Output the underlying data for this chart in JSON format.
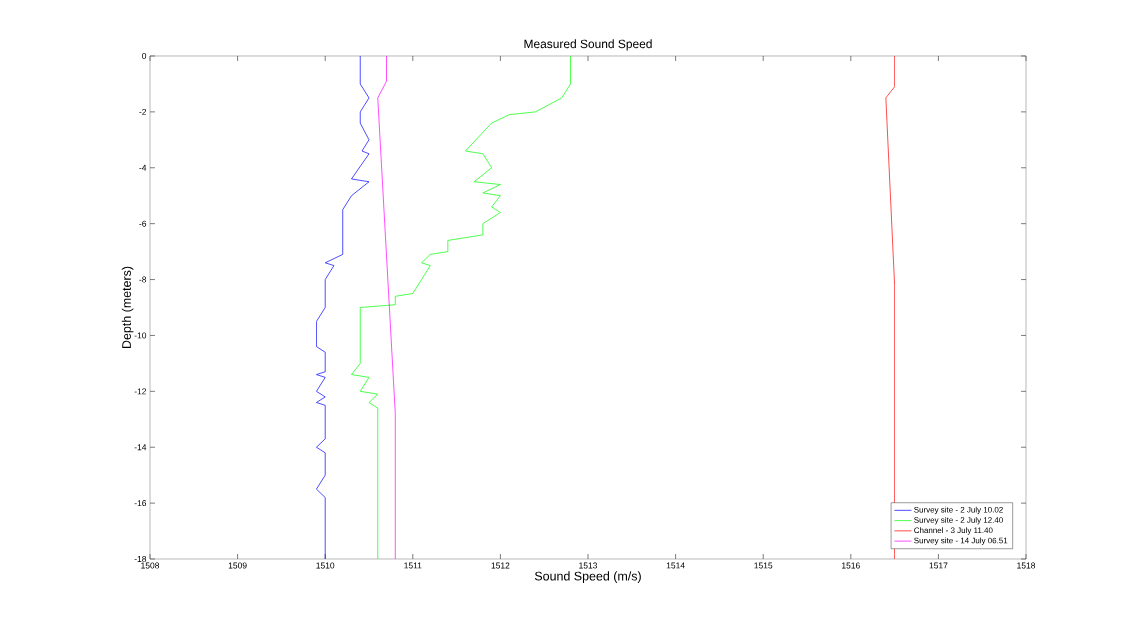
{
  "chart_data": {
    "type": "line",
    "title": "Measured Sound Speed",
    "xlabel": "Sound Speed (m/s)",
    "ylabel": "Depth (meters)",
    "xlim": [
      1508,
      1518
    ],
    "ylim": [
      -18,
      0
    ],
    "xticks": [
      1508,
      1509,
      1510,
      1511,
      1512,
      1513,
      1514,
      1515,
      1516,
      1517,
      1518
    ],
    "yticks": [
      -18,
      -16,
      -14,
      -12,
      -10,
      -8,
      -6,
      -4,
      -2,
      0
    ],
    "grid": false,
    "legend": "bottom right",
    "marker": "none",
    "line_style": "solid",
    "series": [
      {
        "name": "Survey site - 2 July 10.02",
        "color": "#0000ff",
        "x": [
          1510.4,
          1510.4,
          1510.5,
          1510.4,
          1510.4,
          1510.5,
          1510.42,
          1510.5,
          1510.3,
          1510.5,
          1510.3,
          1510.2,
          1510.2,
          1510.0,
          1510.1,
          1510.0,
          1510.0,
          1509.9,
          1509.9,
          1510.0,
          1510.0,
          1509.9,
          1510.0,
          1509.9,
          1510.0,
          1509.9,
          1510.0,
          1510.0,
          1509.9,
          1510.0,
          1510.0,
          1509.9,
          1510.0,
          1510.0
        ],
        "values": [
          0,
          -1.0,
          -1.5,
          -2.0,
          -2.4,
          -3.0,
          -3.4,
          -3.5,
          -4.4,
          -4.5,
          -5.0,
          -5.5,
          -7.1,
          -7.4,
          -7.5,
          -8.0,
          -9.0,
          -9.5,
          -10.4,
          -10.6,
          -11.3,
          -11.4,
          -11.5,
          -12.0,
          -12.2,
          -12.4,
          -12.5,
          -13.7,
          -14.0,
          -14.2,
          -15.0,
          -15.5,
          -15.8,
          -18
        ]
      },
      {
        "name": "Survey site - 2 July 12.40",
        "color": "#00ff00",
        "x": [
          1512.8,
          1512.8,
          1512.7,
          1512.4,
          1512.1,
          1511.9,
          1511.6,
          1511.8,
          1511.9,
          1511.7,
          1512.0,
          1511.8,
          1512.0,
          1511.9,
          1512.0,
          1511.8,
          1511.8,
          1511.4,
          1511.4,
          1511.2,
          1511.1,
          1511.2,
          1511.0,
          1510.8,
          1510.8,
          1510.4,
          1510.4,
          1510.3,
          1510.5,
          1510.4,
          1510.6,
          1510.5,
          1510.6,
          1510.6
        ],
        "values": [
          0,
          -1.0,
          -1.5,
          -2.0,
          -2.1,
          -2.4,
          -3.4,
          -3.5,
          -4.0,
          -4.5,
          -4.6,
          -4.9,
          -5.0,
          -5.4,
          -5.6,
          -6.0,
          -6.4,
          -6.6,
          -7.0,
          -7.1,
          -7.4,
          -7.5,
          -8.5,
          -8.6,
          -8.9,
          -9.0,
          -11.0,
          -11.4,
          -11.5,
          -12.0,
          -12.1,
          -12.4,
          -12.6,
          -18
        ]
      },
      {
        "name": "Channel - 3 July 11.40",
        "color": "#ff0000",
        "x": [
          1516.5,
          1516.5,
          1516.4,
          1516.5,
          1516.5
        ],
        "values": [
          0,
          -1.1,
          -1.5,
          -8.2,
          -18
        ]
      },
      {
        "name": "Survey site - 14 July 06.51",
        "color": "#ff00ff",
        "x": [
          1510.7,
          1510.7,
          1510.6,
          1510.8,
          1510.8
        ],
        "values": [
          0,
          -0.9,
          -1.5,
          -12.8,
          -18
        ]
      }
    ]
  }
}
